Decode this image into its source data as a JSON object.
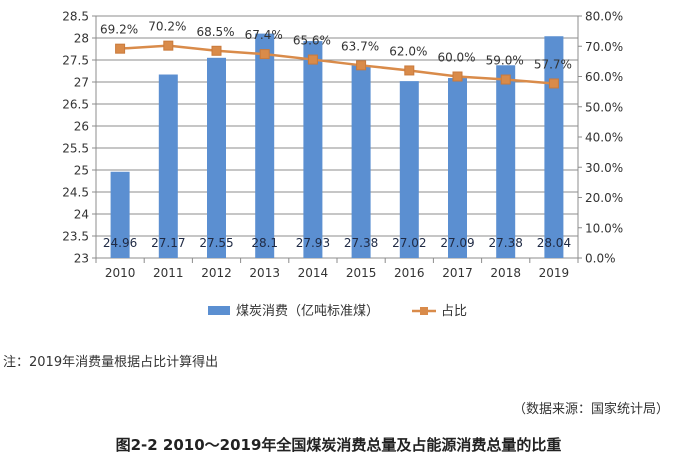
{
  "chart_data": {
    "type": "bar",
    "categories": [
      "2010",
      "2011",
      "2012",
      "2013",
      "2014",
      "2015",
      "2016",
      "2017",
      "2018",
      "2019"
    ],
    "series": [
      {
        "name": "煤炭消费（亿吨标准煤）",
        "type": "bar",
        "axis": "left",
        "values": [
          24.96,
          27.17,
          27.55,
          28.1,
          27.93,
          27.38,
          27.02,
          27.09,
          27.38,
          28.04
        ],
        "labels": [
          "24.96",
          "27.17",
          "27.55",
          "28.1",
          "27.93",
          "27.38",
          "27.02",
          "27.09",
          "27.38",
          "28.04"
        ],
        "color": "#5b8fd1"
      },
      {
        "name": "占比",
        "type": "line",
        "axis": "right",
        "values": [
          69.2,
          70.2,
          68.5,
          67.4,
          65.6,
          63.7,
          62.0,
          60.0,
          59.0,
          57.7
        ],
        "labels": [
          "69.2%",
          "70.2%",
          "68.5%",
          "67.4%",
          "65.6%",
          "63.7%",
          "62.0%",
          "60.0%",
          "59.0%",
          "57.7%"
        ],
        "color": "#d98b4a"
      }
    ],
    "ylim": [
      23,
      28.5
    ],
    "y_ticks": [
      "23",
      "23.5",
      "24",
      "24.5",
      "25",
      "25.5",
      "26",
      "26.5",
      "27",
      "27.5",
      "28",
      "28.5"
    ],
    "y2lim": [
      0,
      80
    ],
    "y2_ticks": [
      "0.0%",
      "10.0%",
      "20.0%",
      "30.0%",
      "40.0%",
      "50.0%",
      "60.0%",
      "70.0%",
      "80.0%"
    ],
    "grid": true,
    "legend_placement": "bottom"
  },
  "note": "注：2019年消费量根据占比计算得出",
  "source": "（数据来源：国家统计局）",
  "caption": "图2-2  2010～2019年全国煤炭消费总量及占能源消费总量的比重"
}
